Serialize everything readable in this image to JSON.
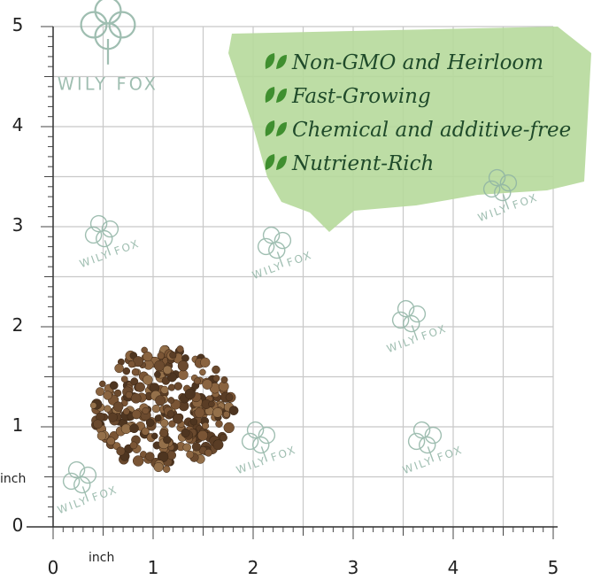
{
  "brand": "WILY FOX",
  "features": [
    "Non-GMO and Heirloom",
    "Fast-Growing",
    "Chemical and additive-free",
    "Nutrient-Rich"
  ],
  "ruler": {
    "unit": "inch",
    "x_labels": [
      "0",
      "1",
      "2",
      "3",
      "4",
      "5"
    ],
    "y_labels": [
      "0",
      "1",
      "2",
      "3",
      "4",
      "5"
    ]
  }
}
